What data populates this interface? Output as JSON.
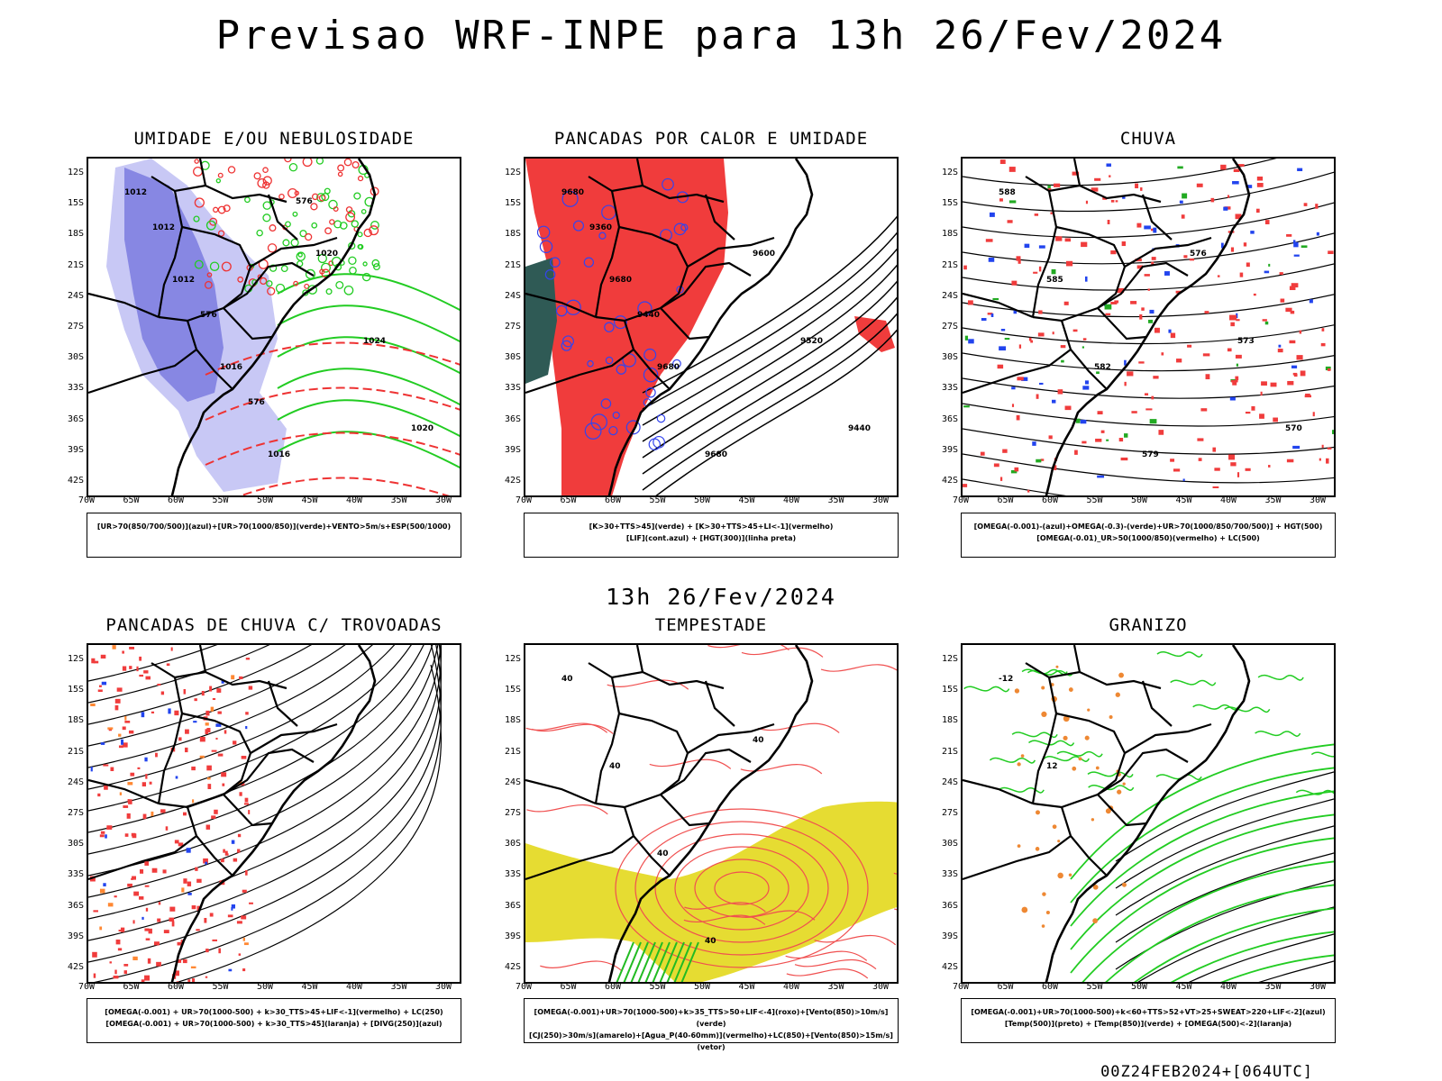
{
  "header": {
    "title": "Previsao WRF-INPE  para 13h 26/Fev/2024"
  },
  "middle": {
    "title": "13h 26/Fev/2024"
  },
  "footer": {
    "run": "00Z24FEB2024+[064UTC]"
  },
  "axes": {
    "lat_labels": [
      "12S",
      "15S",
      "18S",
      "21S",
      "24S",
      "27S",
      "30S",
      "33S",
      "36S",
      "39S",
      "42S"
    ],
    "lon_labels": [
      "70W",
      "65W",
      "60W",
      "55W",
      "50W",
      "45W",
      "40W",
      "35W",
      "30W"
    ]
  },
  "panels": [
    {
      "title": "UMIDADE E/OU NEBULOSIDADE",
      "legend": [
        "[UR>70(850/700/500)](azul)+[UR>70(1000/850)](verde)+VENTO>5m/s+ESP(500/1000)"
      ],
      "contour_labels": [
        "1012",
        "1012",
        "1016",
        "1016",
        "1020",
        "1024",
        "1020",
        "1012",
        "576",
        "576",
        "576"
      ],
      "colors": {
        "shade1": "#c8c8f5",
        "shade2": "#6b6bdc",
        "green": "#22cc22",
        "red": "#ee3333"
      }
    },
    {
      "title": "PANCADAS POR CALOR E UMIDADE",
      "legend": [
        "[K>30+TTS>45](verde) + [K>30+TTS>45+LI<-1](vermelho)",
        "[LIF](cont.azul) + [HGT(300)](linha preta)"
      ],
      "contour_labels": [
        "9680",
        "9680",
        "9680",
        "9680",
        "9600",
        "9520",
        "9440",
        "9360",
        "9440"
      ],
      "colors": {
        "red": "#f03c3c",
        "teal": "#2f5a55",
        "blue": "#3344ee"
      }
    },
    {
      "title": "CHUVA",
      "legend": [
        "[OMEGA(-0.001)-(azul)+OMEGA(-0.3)-(verde)+UR>70(1000/850/700/500)] + HGT(500)",
        "[OMEGA(-0.01)_UR>50(1000/850)(vermelho) + LC(500)"
      ],
      "contour_labels": [
        "588",
        "585",
        "582",
        "579",
        "576",
        "573",
        "570"
      ],
      "colors": {
        "red": "#f03c3c",
        "green": "#22aa22",
        "blue": "#2244ee"
      }
    },
    {
      "title": "PANCADAS DE CHUVA C/ TROVOADAS",
      "legend": [
        "[OMEGA(-0.001) + UR>70(1000-500) + k>30_TTS>45+LIF<-1](vermelho) + LC(250)",
        "[OMEGA(-0.001) + UR>70(1000-500) + k>30_TTS>45](laranja) + [DIVG(250)](azul)"
      ],
      "contour_labels": [],
      "colors": {
        "red": "#f03c3c",
        "orange": "#ff8833",
        "blue": "#2244ee"
      }
    },
    {
      "title": "TEMPESTADE",
      "legend": [
        "[OMEGA(-0.001)+UR>70(1000-500)+k>35_TTS>50+LIF<-4](roxo)+[Vento(850)>10m/s](verde)",
        "[CJ(250)>30m/s](amarelo)+[Agua_P(40-60mm)](vermelho)+LC(850)+[Vento(850)>15m/s](vetor)"
      ],
      "contour_labels": [
        "40",
        "40",
        "40",
        "40",
        "40"
      ],
      "colors": {
        "yellow": "#e6dc32",
        "red": "#f05050",
        "green": "#22bb22",
        "purple": "#aa22cc"
      }
    },
    {
      "title": "GRANIZO",
      "legend": [
        "[OMEGA(-0.001)+UR>70(1000-500)+k<60+TTS>52+VT>25+SWEAT>220+LIF<-2](azul)",
        "[Temp(500)](preto) + [Temp(850)](verde) + [OMEGA(500)<-2](laranja)"
      ],
      "contour_labels": [
        "-12",
        "12"
      ],
      "colors": {
        "green": "#22cc22",
        "orange": "#ee8833"
      }
    }
  ]
}
